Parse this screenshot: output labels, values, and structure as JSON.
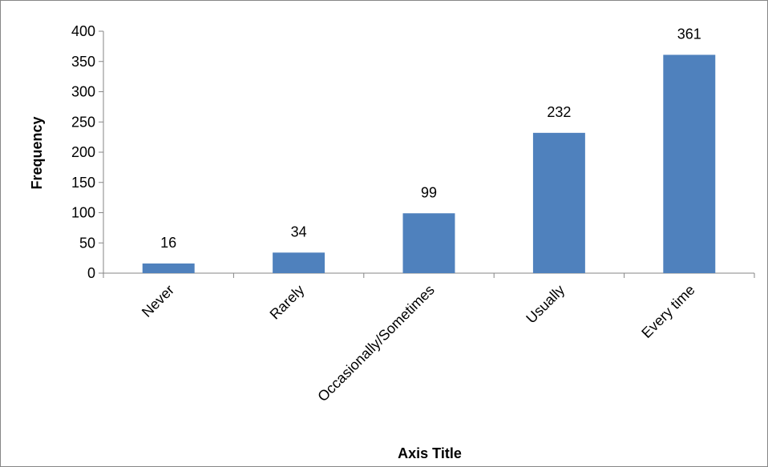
{
  "chart_data": {
    "type": "bar",
    "categories": [
      "Never",
      "Rarely",
      "Occasionally/Sometimes",
      "Usually",
      "Every time"
    ],
    "values": [
      16,
      34,
      99,
      232,
      361
    ],
    "data_labels": [
      "16",
      "34",
      "99",
      "232",
      "361"
    ],
    "title": "",
    "xlabel": "Axis Title",
    "ylabel": "Frequency",
    "ylim": [
      0,
      400
    ],
    "yticks": [
      0,
      50,
      100,
      150,
      200,
      250,
      300,
      350,
      400
    ],
    "ytick_labels": [
      "0",
      "50",
      "100",
      "150",
      "200",
      "250",
      "300",
      "350",
      "400"
    ],
    "grid": false,
    "legend": "none",
    "bar_color": "#4F81BD",
    "axis_color": "#868686"
  }
}
